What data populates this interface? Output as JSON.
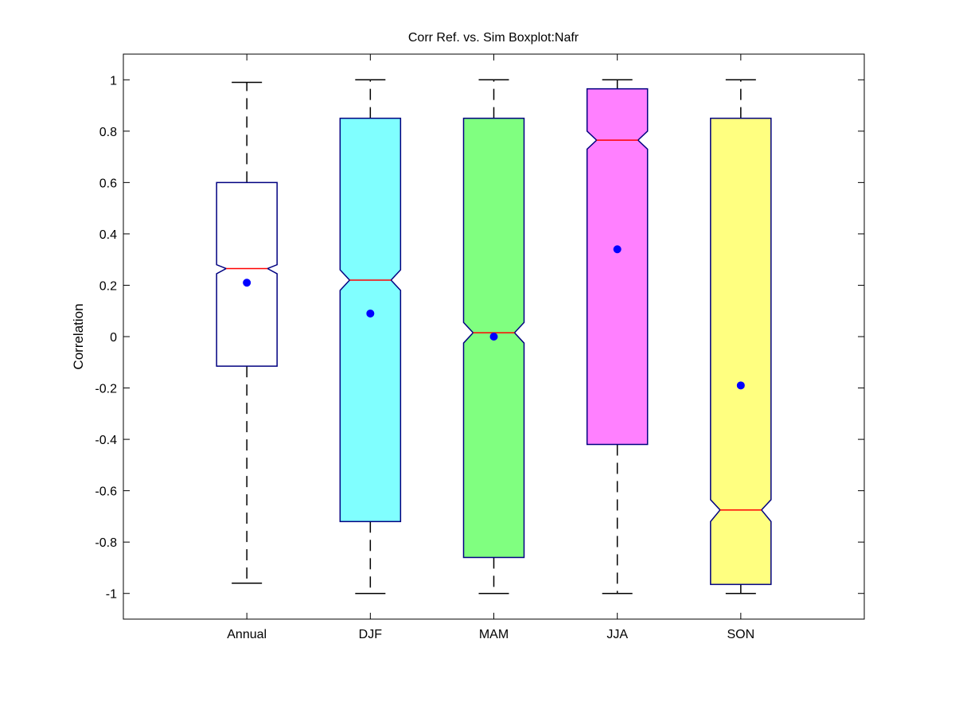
{
  "chart_data": {
    "type": "boxplot",
    "title": "Corr Ref. vs. Sim Boxplot:Nafr",
    "xlabel": "",
    "ylabel": "Correlation",
    "ylim": [
      -1.1,
      1.1
    ],
    "yticks": [
      "1",
      "0.8",
      "0.6",
      "0.4",
      "0.2",
      "0",
      "-0.2",
      "-0.4",
      "-0.6",
      "-0.8",
      "-1"
    ],
    "ytick_values": [
      1,
      0.8,
      0.6,
      0.4,
      0.2,
      0,
      -0.2,
      -0.4,
      -0.6,
      -0.8,
      -1
    ],
    "grid": false,
    "notched": true,
    "categories": [
      "Annual",
      "DJF",
      "MAM",
      "JJA",
      "SON"
    ],
    "boxes": [
      {
        "category": "Annual",
        "whisker_low": -0.96,
        "q1": -0.115,
        "median": 0.265,
        "q3": 0.6,
        "whisker_high": 0.99,
        "notch_low": 0.245,
        "notch_high": 0.28,
        "mean": 0.21,
        "color": "#ffffff"
      },
      {
        "category": "DJF",
        "whisker_low": -1.0,
        "q1": -0.72,
        "median": 0.22,
        "q3": 0.85,
        "whisker_high": 1.0,
        "notch_low": 0.18,
        "notch_high": 0.26,
        "mean": 0.09,
        "color": "#80ffff"
      },
      {
        "category": "MAM",
        "whisker_low": -1.0,
        "q1": -0.86,
        "median": 0.015,
        "q3": 0.85,
        "whisker_high": 1.0,
        "notch_low": -0.025,
        "notch_high": 0.055,
        "mean": 0.0,
        "color": "#80ff80"
      },
      {
        "category": "JJA",
        "whisker_low": -1.0,
        "q1": -0.42,
        "median": 0.765,
        "q3": 0.965,
        "whisker_high": 1.0,
        "notch_low": 0.73,
        "notch_high": 0.8,
        "mean": 0.34,
        "color": "#ff80ff"
      },
      {
        "category": "SON",
        "whisker_low": -1.0,
        "q1": -0.965,
        "median": -0.675,
        "q3": 0.85,
        "whisker_high": 1.0,
        "notch_low": -0.72,
        "notch_high": -0.635,
        "mean": -0.19,
        "color": "#ffff80"
      }
    ],
    "colors": {
      "box_edge": "#000080",
      "median": "#ff0000",
      "mean_marker": "#0000ff",
      "whisker": "#000000"
    }
  }
}
